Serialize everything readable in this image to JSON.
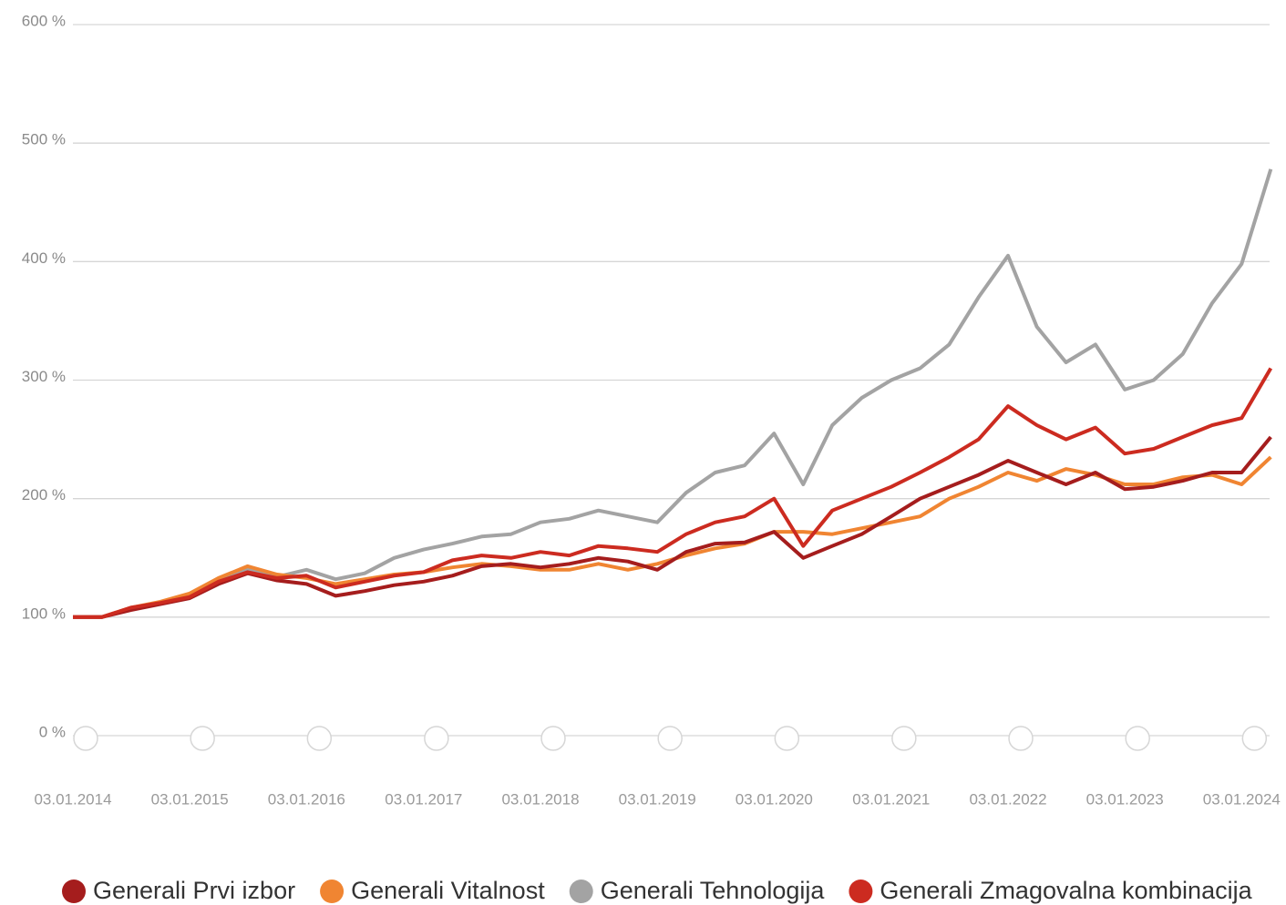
{
  "chart_data": {
    "type": "line",
    "x": [
      "2014-01-03",
      "2014-04-03",
      "2014-07-03",
      "2014-10-03",
      "2015-01-03",
      "2015-04-03",
      "2015-07-03",
      "2015-10-03",
      "2016-01-03",
      "2016-04-03",
      "2016-07-03",
      "2016-10-03",
      "2017-01-03",
      "2017-04-03",
      "2017-07-03",
      "2017-10-03",
      "2018-01-03",
      "2018-04-03",
      "2018-07-03",
      "2018-10-03",
      "2019-01-03",
      "2019-04-03",
      "2019-07-03",
      "2019-10-03",
      "2020-01-03",
      "2020-04-03",
      "2020-07-03",
      "2020-10-03",
      "2021-01-03",
      "2021-04-03",
      "2021-07-03",
      "2021-10-03",
      "2022-01-03",
      "2022-04-03",
      "2022-07-03",
      "2022-10-03",
      "2023-01-03",
      "2023-04-03",
      "2023-07-03",
      "2023-10-03",
      "2024-01-03",
      "2024-04-03"
    ],
    "series": [
      {
        "name": "Generali Prvi izbor",
        "color": "#a51d1d",
        "values": [
          100,
          100,
          106,
          111,
          116,
          128,
          137,
          131,
          128,
          118,
          122,
          127,
          130,
          135,
          143,
          145,
          142,
          145,
          150,
          147,
          140,
          155,
          162,
          163,
          172,
          150,
          160,
          170,
          185,
          200,
          210,
          220,
          232,
          222,
          212,
          222,
          208,
          210,
          215,
          222,
          222,
          252
        ]
      },
      {
        "name": "Generali Vitalnost",
        "color": "#f08532",
        "values": [
          100,
          100,
          108,
          113,
          120,
          133,
          143,
          136,
          133,
          128,
          132,
          136,
          138,
          142,
          145,
          143,
          140,
          140,
          145,
          140,
          145,
          152,
          158,
          162,
          172,
          172,
          170,
          175,
          180,
          185,
          200,
          210,
          222,
          215,
          225,
          220,
          212,
          212,
          218,
          220,
          212,
          235
        ]
      },
      {
        "name": "Generali Tehnologija",
        "color": "#a3a3a3",
        "values": [
          100,
          100,
          107,
          112,
          118,
          133,
          140,
          134,
          140,
          132,
          137,
          150,
          157,
          162,
          168,
          170,
          180,
          183,
          190,
          185,
          180,
          205,
          222,
          228,
          255,
          212,
          262,
          285,
          300,
          310,
          330,
          370,
          405,
          345,
          315,
          330,
          292,
          300,
          322,
          365,
          398,
          478
        ]
      },
      {
        "name": "Generali Zmagovalna kombinacija",
        "color": "#cc2b20",
        "values": [
          100,
          100,
          108,
          112,
          117,
          130,
          138,
          133,
          135,
          125,
          130,
          135,
          138,
          148,
          152,
          150,
          155,
          152,
          160,
          158,
          155,
          170,
          180,
          185,
          200,
          160,
          190,
          200,
          210,
          222,
          235,
          250,
          278,
          262,
          250,
          260,
          238,
          242,
          252,
          262,
          268,
          310
        ]
      }
    ],
    "xlim": [
      "2014-01-03",
      "2024-04-05"
    ],
    "xticks": [
      {
        "value": "2014-01-03",
        "label": "03.01.2014"
      },
      {
        "value": "2015-01-03",
        "label": "03.01.2015"
      },
      {
        "value": "2016-01-03",
        "label": "03.01.2016"
      },
      {
        "value": "2017-01-03",
        "label": "03.01.2017"
      },
      {
        "value": "2018-01-03",
        "label": "03.01.2018"
      },
      {
        "value": "2019-01-03",
        "label": "03.01.2019"
      },
      {
        "value": "2020-01-03",
        "label": "03.01.2020"
      },
      {
        "value": "2021-01-03",
        "label": "03.01.2021"
      },
      {
        "value": "2022-01-03",
        "label": "03.01.2022"
      },
      {
        "value": "2023-01-03",
        "label": "03.01.2023"
      },
      {
        "value": "2024-01-03",
        "label": "03.01.2024"
      }
    ],
    "ylim": [
      0,
      600
    ],
    "yticks": [
      {
        "value": 0,
        "label": "0 %"
      },
      {
        "value": 100,
        "label": "100 %"
      },
      {
        "value": 200,
        "label": "200 %"
      },
      {
        "value": 300,
        "label": "300 %"
      },
      {
        "value": 400,
        "label": "400 %"
      },
      {
        "value": 500,
        "label": "500 %"
      },
      {
        "value": 600,
        "label": "600 %"
      }
    ],
    "grid": true,
    "legend": "bottom"
  }
}
